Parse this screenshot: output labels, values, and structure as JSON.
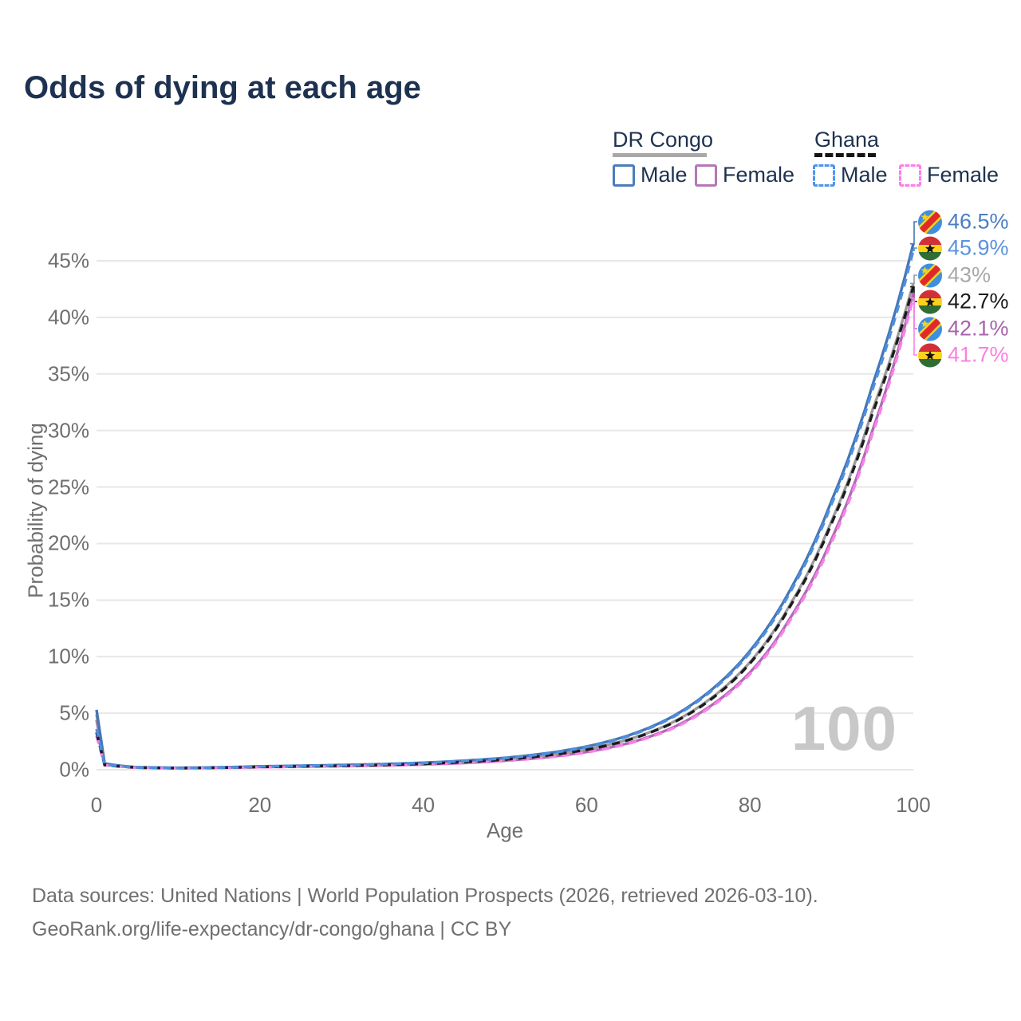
{
  "title": "Odds of dying at each age",
  "legend": {
    "groups": [
      {
        "name": "DR Congo",
        "line_style": "solid",
        "items": [
          {
            "label": "Male"
          },
          {
            "label": "Female"
          }
        ]
      },
      {
        "name": "Ghana",
        "line_style": "dashed",
        "items": [
          {
            "label": "Male"
          },
          {
            "label": "Female"
          }
        ]
      }
    ]
  },
  "chart_data": {
    "type": "line",
    "title": "Odds of dying at each age",
    "xlabel": "Age",
    "ylabel": "Probability of dying",
    "x_ticks": [
      0,
      20,
      40,
      60,
      80,
      100
    ],
    "y_ticks_pct": [
      0,
      5,
      10,
      15,
      20,
      25,
      30,
      35,
      40,
      45
    ],
    "xlim": [
      0,
      100
    ],
    "ylim_pct": [
      0,
      48
    ],
    "grid": "horizontal-only",
    "legend_position": "top-right",
    "age_counter_watermark": "100",
    "x": [
      0,
      1,
      5,
      10,
      15,
      20,
      25,
      30,
      35,
      40,
      45,
      50,
      55,
      60,
      65,
      70,
      75,
      80,
      85,
      90,
      95,
      100
    ],
    "series": [
      {
        "name": "DR Congo Male",
        "country": "DR Congo",
        "sex": "male",
        "flag": "dr-congo",
        "dash": "solid",
        "color": "#4576b5",
        "label_color": "#4a7ec2",
        "end_label": "46.5%",
        "values": [
          5.3,
          0.55,
          0.22,
          0.17,
          0.21,
          0.3,
          0.36,
          0.42,
          0.5,
          0.62,
          0.8,
          1.05,
          1.45,
          2.05,
          3.0,
          4.5,
          6.9,
          10.5,
          16.0,
          23.8,
          34.0,
          46.5
        ]
      },
      {
        "name": "Ghana Male",
        "country": "Ghana",
        "sex": "male",
        "flag": "ghana",
        "dash": "dashed",
        "color": "#4f8fe0",
        "label_color": "#5b92dd",
        "end_label": "45.9%",
        "values": [
          3.6,
          0.45,
          0.2,
          0.15,
          0.19,
          0.28,
          0.34,
          0.4,
          0.48,
          0.6,
          0.78,
          1.02,
          1.42,
          2.0,
          2.95,
          4.42,
          6.8,
          10.35,
          15.8,
          23.5,
          33.6,
          45.9
        ]
      },
      {
        "name": "DR Congo Both sexes",
        "country": "DR Congo",
        "sex": "both",
        "flag": "dr-congo",
        "dash": "solid",
        "color": "#9b9b9b",
        "label_color": "#a9a9a9",
        "end_label": "43%",
        "values": [
          4.9,
          0.52,
          0.21,
          0.16,
          0.2,
          0.27,
          0.32,
          0.37,
          0.44,
          0.54,
          0.7,
          0.92,
          1.27,
          1.8,
          2.65,
          4.0,
          6.2,
          9.5,
          14.7,
          22.0,
          31.8,
          43.0
        ]
      },
      {
        "name": "Ghana Both sexes",
        "country": "Ghana",
        "sex": "both",
        "flag": "ghana",
        "dash": "dashed",
        "color": "#1c1c1c",
        "label_color": "#1a1a1a",
        "end_label": "42.7%",
        "values": [
          3.3,
          0.42,
          0.19,
          0.14,
          0.18,
          0.25,
          0.3,
          0.35,
          0.42,
          0.52,
          0.68,
          0.9,
          1.25,
          1.77,
          2.6,
          3.95,
          6.1,
          9.4,
          14.55,
          21.8,
          31.5,
          42.7
        ]
      },
      {
        "name": "DR Congo Female",
        "country": "DR Congo",
        "sex": "female",
        "flag": "dr-congo",
        "dash": "solid",
        "color": "#b06ab5",
        "label_color": "#a862ae",
        "end_label": "42.1%",
        "values": [
          4.4,
          0.5,
          0.2,
          0.15,
          0.18,
          0.24,
          0.28,
          0.33,
          0.39,
          0.47,
          0.6,
          0.8,
          1.1,
          1.57,
          2.33,
          3.55,
          5.55,
          8.6,
          13.5,
          20.4,
          30.0,
          42.1
        ]
      },
      {
        "name": "Ghana Female",
        "country": "Ghana",
        "sex": "female",
        "flag": "ghana",
        "dash": "dashed",
        "color": "#fb80e8",
        "label_color": "#fb80e0",
        "end_label": "41.7%",
        "values": [
          3.0,
          0.4,
          0.18,
          0.13,
          0.17,
          0.22,
          0.26,
          0.31,
          0.37,
          0.45,
          0.58,
          0.78,
          1.07,
          1.53,
          2.28,
          3.47,
          5.45,
          8.45,
          13.3,
          20.1,
          29.7,
          41.7
        ]
      }
    ]
  },
  "footer": {
    "line1": "Data sources: United Nations | World Population Prospects (2026, retrieved 2026-03-10).",
    "line2": "GeoRank.org/life-expectancy/dr-congo/ghana | CC BY"
  }
}
